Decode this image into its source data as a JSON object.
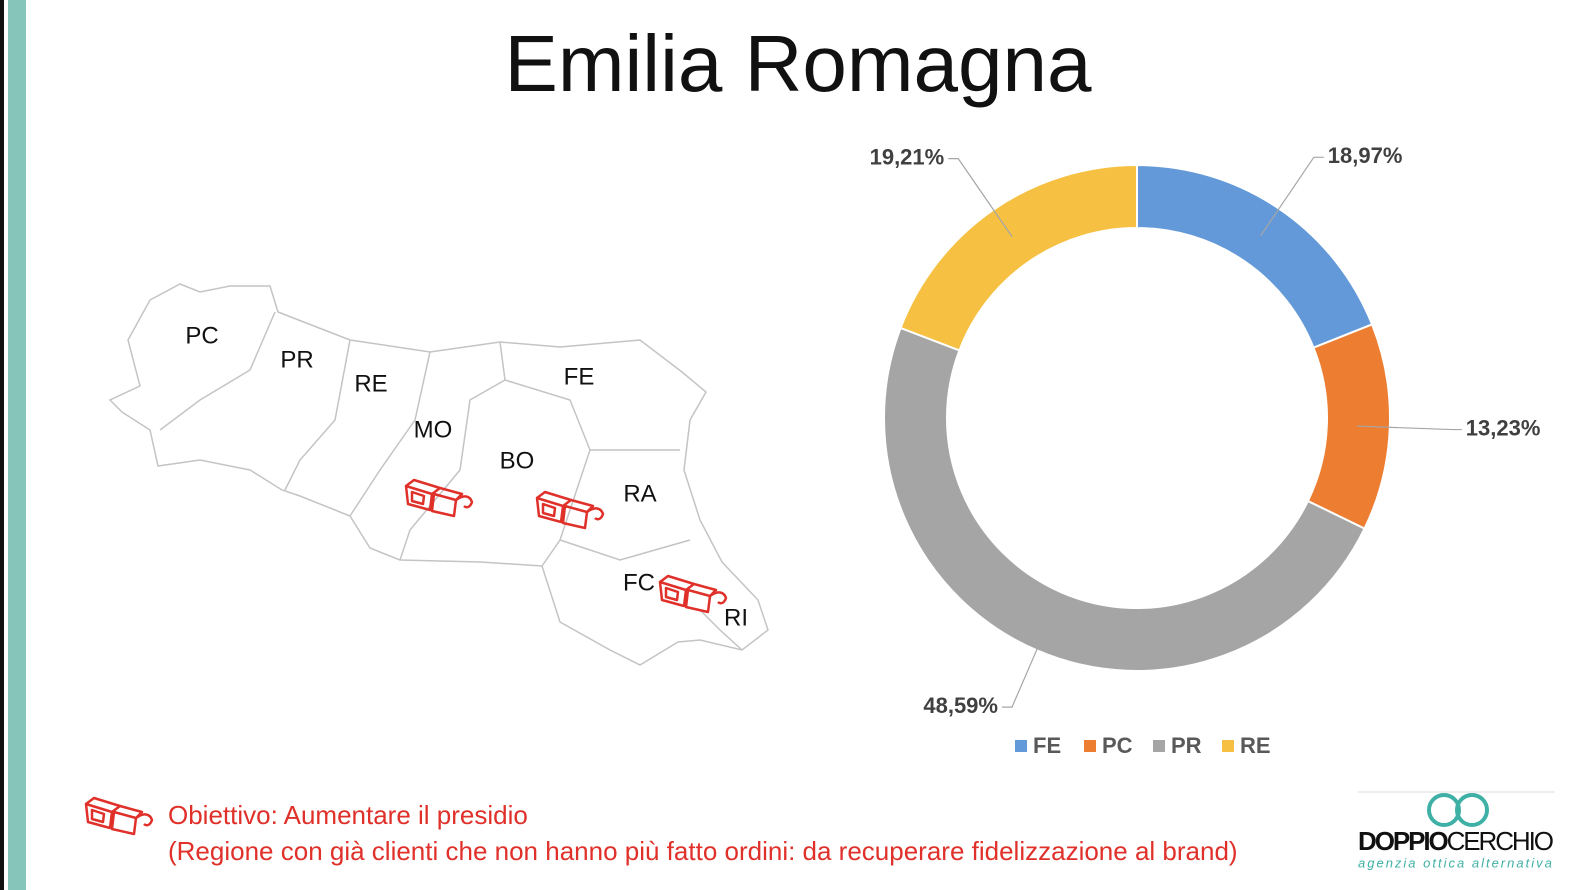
{
  "title": "Emilia Romagna",
  "map": {
    "labels": [
      "PC",
      "PR",
      "RE",
      "MO",
      "BO",
      "FE",
      "RA",
      "FC",
      "RI"
    ]
  },
  "note": {
    "line1": "Obiettivo: Aumentare il presidio",
    "line2": "(Regione con già clienti che non hanno più fatto ordini: da recuperare fidelizzazione al brand)"
  },
  "logo": {
    "word1": "DOPPIO",
    "word2": "CERCHIO",
    "tagline": "agenzia ottica alternativa"
  },
  "chart_data": {
    "type": "donut",
    "categories": [
      "FE",
      "PC",
      "PR",
      "RE"
    ],
    "values": [
      18.97,
      13.23,
      48.59,
      19.21
    ],
    "value_labels": [
      "18,97%",
      "13,23%",
      "48,59%",
      "19,21%"
    ],
    "colors": [
      "#6399d8",
      "#ec7d31",
      "#a5a5a5",
      "#f6c143"
    ],
    "legend": "bottom"
  }
}
